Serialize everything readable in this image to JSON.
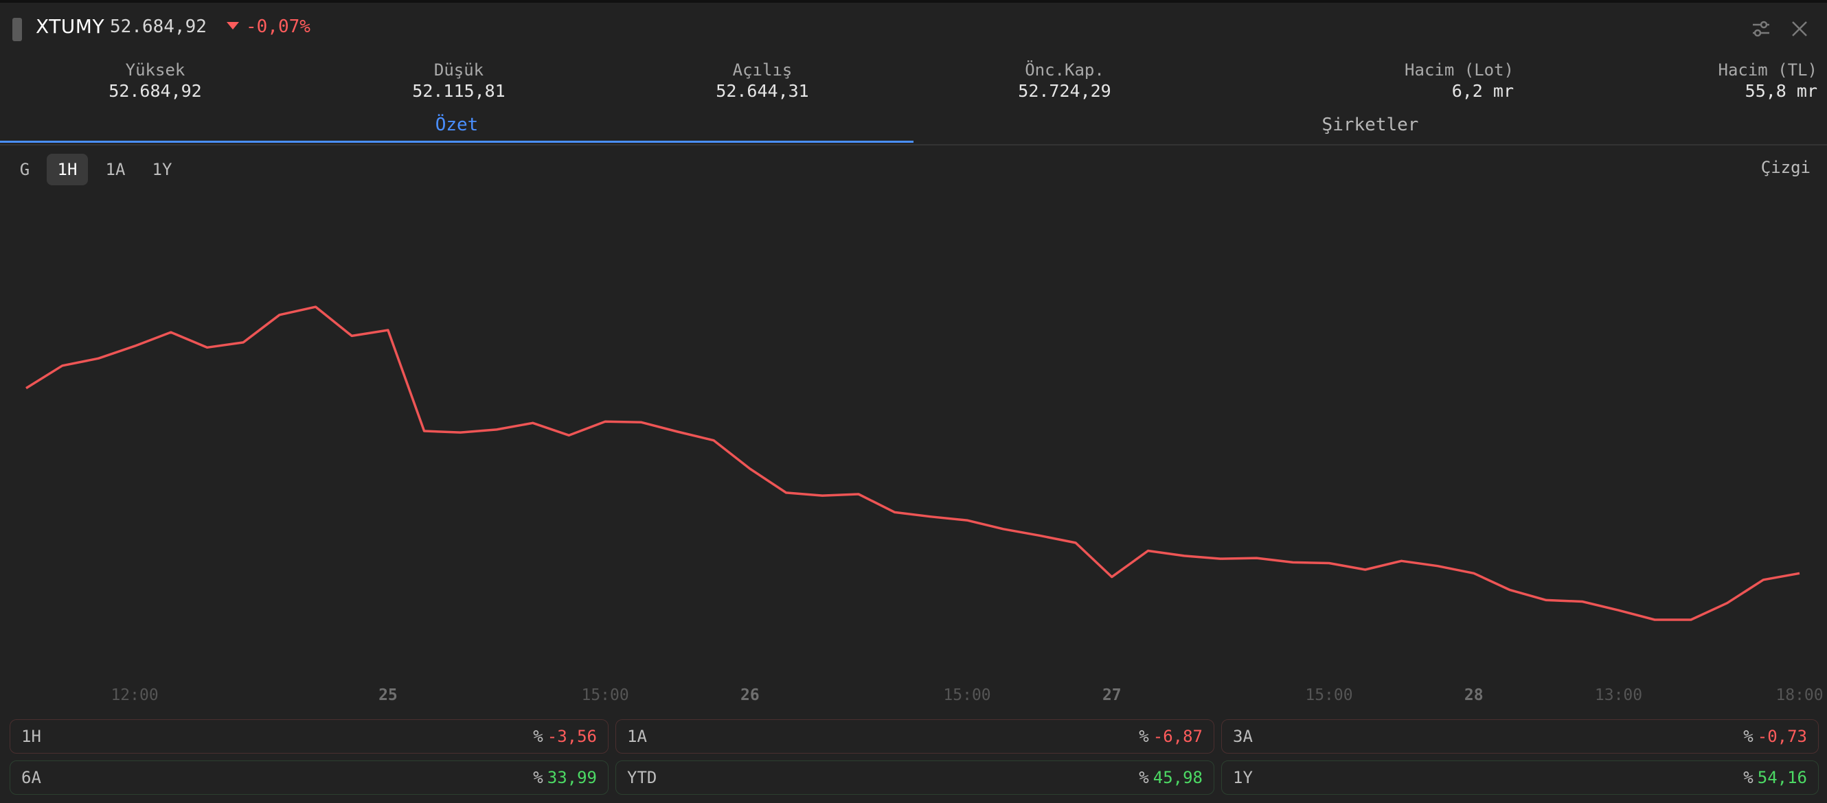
{
  "header": {
    "symbol": "XTUMY",
    "price": "52.684,92",
    "change": "-0,07%",
    "icons": [
      "sliders-icon",
      "close-icon"
    ]
  },
  "stats": [
    {
      "label": "Yüksek",
      "value": "52.684,92"
    },
    {
      "label": "Düşük",
      "value": "52.115,81"
    },
    {
      "label": "Açılış",
      "value": "52.644,31"
    },
    {
      "label": "Önc.Kap.",
      "value": "52.724,29"
    },
    {
      "label": "Hacim (Lot)",
      "value": "6,2 mr"
    },
    {
      "label": "Hacim (TL)",
      "value": "55,8 mr"
    }
  ],
  "tabs": [
    {
      "label": "Özet",
      "active": true
    },
    {
      "label": "Şirketler",
      "active": false
    }
  ],
  "ranges": [
    {
      "label": "G",
      "active": false
    },
    {
      "label": "1H",
      "active": true
    },
    {
      "label": "1A",
      "active": false
    },
    {
      "label": "1Y",
      "active": false
    }
  ],
  "chart_type_label": "Çizgi",
  "colors": {
    "line": "#ee5555",
    "accent": "#4a8fff",
    "negative": "#ff5c5c",
    "positive": "#4cd964",
    "background": "#222222"
  },
  "chart_data": {
    "type": "line",
    "x_ticks": [
      {
        "label": "12:00",
        "bold": false
      },
      {
        "label": "25",
        "bold": true
      },
      {
        "label": "15:00",
        "bold": false
      },
      {
        "label": "26",
        "bold": true
      },
      {
        "label": "15:00",
        "bold": false
      },
      {
        "label": "27",
        "bold": true
      },
      {
        "label": "15:00",
        "bold": false
      },
      {
        "label": "28",
        "bold": true
      },
      {
        "label": "13:00",
        "bold": false
      },
      {
        "label": "18:00",
        "bold": false
      }
    ],
    "x_tick_index": [
      3,
      10,
      16,
      20,
      26,
      30,
      36,
      40,
      44,
      49
    ],
    "series": [
      {
        "values": [
          53820,
          53975,
          54025,
          54110,
          54205,
          54100,
          54135,
          54325,
          54380,
          54180,
          54220,
          53525,
          53515,
          53535,
          53580,
          53495,
          53590,
          53585,
          53520,
          53460,
          53265,
          53100,
          53080,
          53090,
          52965,
          52935,
          52910,
          52850,
          52805,
          52755,
          52520,
          52700,
          52665,
          52645,
          52650,
          52620,
          52615,
          52570,
          52630,
          52595,
          52545,
          52430,
          52360,
          52350,
          52290,
          52225,
          52225,
          52340,
          52500,
          52545
        ]
      }
    ],
    "ylim": [
      52050,
      54650
    ],
    "grid": false,
    "legend": "none"
  },
  "performance": [
    {
      "label": "1H",
      "pct": "%",
      "value": "-3,56",
      "sign": "neg"
    },
    {
      "label": "1A",
      "pct": "%",
      "value": "-6,87",
      "sign": "neg"
    },
    {
      "label": "3A",
      "pct": "%",
      "value": "-0,73",
      "sign": "neg"
    },
    {
      "label": "6A",
      "pct": "%",
      "value": "33,99",
      "sign": "pos"
    },
    {
      "label": "YTD",
      "pct": "%",
      "value": "45,98",
      "sign": "pos"
    },
    {
      "label": "1Y",
      "pct": "%",
      "value": "54,16",
      "sign": "pos"
    }
  ]
}
